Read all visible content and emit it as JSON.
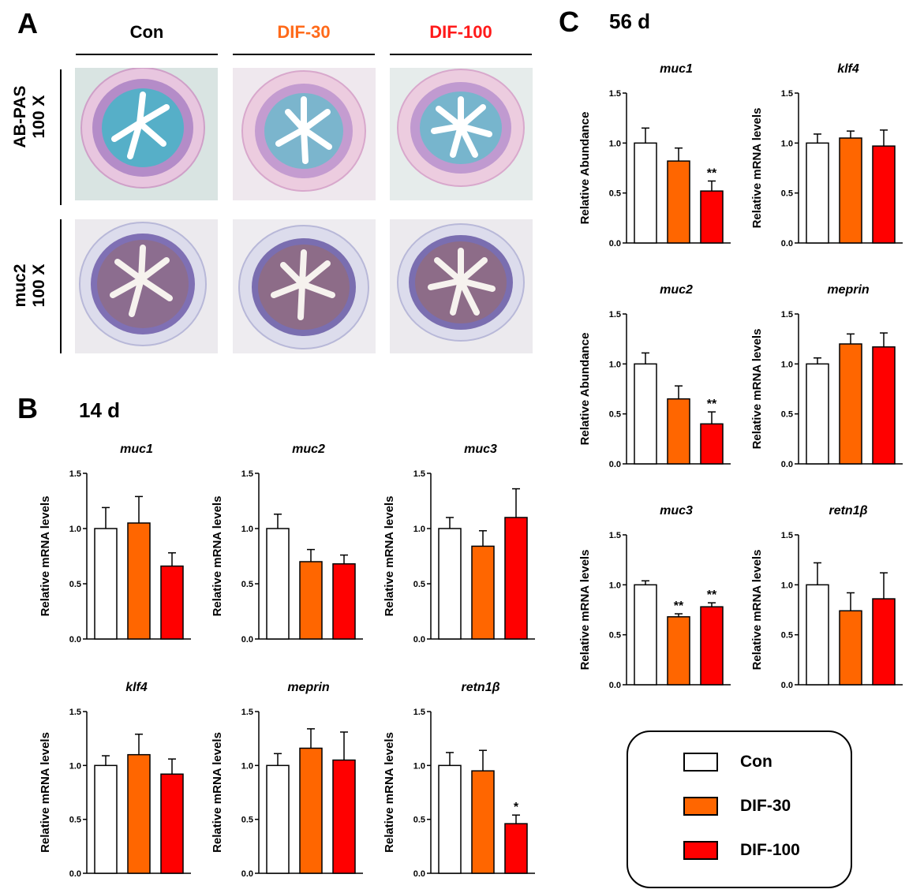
{
  "panels": {
    "A": "A",
    "B": "B",
    "C": "C",
    "B_day": "14 d",
    "C_day": "56 d"
  },
  "histology": {
    "columns": [
      {
        "label": "Con",
        "color": "#000000"
      },
      {
        "label": "DIF-30",
        "color": "#ff6a1a"
      },
      {
        "label": "DIF-100",
        "color": "#ff1a1a"
      }
    ],
    "rows": [
      {
        "line1": "AB-PAS",
        "line2": "100 X"
      },
      {
        "line1": "muc2",
        "line2": "100 X"
      }
    ],
    "image_descriptions": []
  },
  "colors": {
    "con": "#ffffff",
    "dif30": "#ff6600",
    "dif100": "#ff0000",
    "axis": "#000000"
  },
  "legend": {
    "items": [
      {
        "label": "Con",
        "color": "#ffffff"
      },
      {
        "label": "DIF-30",
        "color": "#ff6600"
      },
      {
        "label": "DIF-100",
        "color": "#ff0000"
      }
    ]
  },
  "chart_data": [
    {
      "id": "b-muc1",
      "panel": "B",
      "type": "bar",
      "title": "muc1",
      "ylabel": "Relative mRNA levels",
      "ylim": [
        0,
        1.5
      ],
      "yticks": [
        "0.0",
        "0.5",
        "1.0",
        "1.5"
      ],
      "categories": [
        "Con",
        "DIF-30",
        "DIF-100"
      ],
      "values": [
        1.0,
        1.05,
        0.66
      ],
      "errors": [
        0.19,
        0.24,
        0.12
      ],
      "sig": [
        "",
        "",
        ""
      ]
    },
    {
      "id": "b-muc2",
      "panel": "B",
      "type": "bar",
      "title": "muc2",
      "ylabel": "Relative mRNA levels",
      "ylim": [
        0,
        1.5
      ],
      "yticks": [
        "0.0",
        "0.5",
        "1.0",
        "1.5"
      ],
      "categories": [
        "Con",
        "DIF-30",
        "DIF-100"
      ],
      "values": [
        1.0,
        0.7,
        0.68
      ],
      "errors": [
        0.13,
        0.11,
        0.08
      ],
      "sig": [
        "",
        "",
        ""
      ]
    },
    {
      "id": "b-muc3",
      "panel": "B",
      "type": "bar",
      "title": "muc3",
      "ylabel": "Relative mRNA levels",
      "ylim": [
        0,
        1.5
      ],
      "yticks": [
        "0.0",
        "0.5",
        "1.0",
        "1.5"
      ],
      "categories": [
        "Con",
        "DIF-30",
        "DIF-100"
      ],
      "values": [
        1.0,
        0.84,
        1.1
      ],
      "errors": [
        0.1,
        0.14,
        0.26
      ],
      "sig": [
        "",
        "",
        ""
      ]
    },
    {
      "id": "b-klf4",
      "panel": "B",
      "type": "bar",
      "title": "klf4",
      "ylabel": "Relative mRNA levels",
      "ylim": [
        0,
        1.5
      ],
      "yticks": [
        "0.0",
        "0.5",
        "1.0",
        "1.5"
      ],
      "categories": [
        "Con",
        "DIF-30",
        "DIF-100"
      ],
      "values": [
        1.0,
        1.1,
        0.92
      ],
      "errors": [
        0.09,
        0.19,
        0.14
      ],
      "sig": [
        "",
        "",
        ""
      ]
    },
    {
      "id": "b-meprin",
      "panel": "B",
      "type": "bar",
      "title": "meprin",
      "ylabel": "Relative mRNA levels",
      "ylim": [
        0,
        1.5
      ],
      "yticks": [
        "0.0",
        "0.5",
        "1.0",
        "1.5"
      ],
      "categories": [
        "Con",
        "DIF-30",
        "DIF-100"
      ],
      "values": [
        1.0,
        1.16,
        1.05
      ],
      "errors": [
        0.11,
        0.18,
        0.26
      ],
      "sig": [
        "",
        "",
        ""
      ]
    },
    {
      "id": "b-retn1b",
      "panel": "B",
      "type": "bar",
      "title": "retn1β",
      "ylabel": "Relative mRNA levels",
      "ylim": [
        0,
        1.5
      ],
      "yticks": [
        "0.0",
        "0.5",
        "1.0",
        "1.5"
      ],
      "categories": [
        "Con",
        "DIF-30",
        "DIF-100"
      ],
      "values": [
        1.0,
        0.95,
        0.46
      ],
      "errors": [
        0.12,
        0.19,
        0.08
      ],
      "sig": [
        "",
        "",
        "*"
      ]
    },
    {
      "id": "c-muc1",
      "panel": "C",
      "type": "bar",
      "title": "muc1",
      "ylabel": "Relative Abundance",
      "ylim": [
        0,
        1.5
      ],
      "yticks": [
        "0.0",
        "0.5",
        "1.0",
        "1.5"
      ],
      "categories": [
        "Con",
        "DIF-30",
        "DIF-100"
      ],
      "values": [
        1.0,
        0.82,
        0.52
      ],
      "errors": [
        0.15,
        0.13,
        0.1
      ],
      "sig": [
        "",
        "",
        "**"
      ]
    },
    {
      "id": "c-klf4",
      "panel": "C",
      "type": "bar",
      "title": "klf4",
      "ylabel": "Relative mRNA levels",
      "ylim": [
        0,
        1.5
      ],
      "yticks": [
        "0.0",
        "0.5",
        "1.0",
        "1.5"
      ],
      "categories": [
        "Con",
        "DIF-30",
        "DIF-100"
      ],
      "values": [
        1.0,
        1.05,
        0.97
      ],
      "errors": [
        0.09,
        0.07,
        0.16
      ],
      "sig": [
        "",
        "",
        ""
      ]
    },
    {
      "id": "c-muc2",
      "panel": "C",
      "type": "bar",
      "title": "muc2",
      "ylabel": "Relative Abundance",
      "ylim": [
        0,
        1.5
      ],
      "yticks": [
        "0.0",
        "0.5",
        "1.0",
        "1.5"
      ],
      "categories": [
        "Con",
        "DIF-30",
        "DIF-100"
      ],
      "values": [
        1.0,
        0.65,
        0.4
      ],
      "errors": [
        0.11,
        0.13,
        0.12
      ],
      "sig": [
        "",
        "",
        "**"
      ]
    },
    {
      "id": "c-meprin",
      "panel": "C",
      "type": "bar",
      "title": "meprin",
      "ylabel": "Relative mRNA levels",
      "ylim": [
        0,
        1.5
      ],
      "yticks": [
        "0.0",
        "0.5",
        "1.0",
        "1.5"
      ],
      "categories": [
        "Con",
        "DIF-30",
        "DIF-100"
      ],
      "values": [
        1.0,
        1.2,
        1.17
      ],
      "errors": [
        0.06,
        0.1,
        0.14
      ],
      "sig": [
        "",
        "",
        ""
      ]
    },
    {
      "id": "c-muc3",
      "panel": "C",
      "type": "bar",
      "title": "muc3",
      "ylabel": "Relative mRNA levels",
      "ylim": [
        0,
        1.5
      ],
      "yticks": [
        "0.0",
        "0.5",
        "1.0",
        "1.5"
      ],
      "categories": [
        "Con",
        "DIF-30",
        "DIF-100"
      ],
      "values": [
        1.0,
        0.68,
        0.78
      ],
      "errors": [
        0.04,
        0.03,
        0.04
      ],
      "sig": [
        "",
        "**",
        "**"
      ]
    },
    {
      "id": "c-retn1b",
      "panel": "C",
      "type": "bar",
      "title": "retn1β",
      "ylabel": "Relative mRNA levels",
      "ylim": [
        0,
        1.5
      ],
      "yticks": [
        "0.0",
        "0.5",
        "1.0",
        "1.5"
      ],
      "categories": [
        "Con",
        "DIF-30",
        "DIF-100"
      ],
      "values": [
        1.0,
        0.74,
        0.86
      ],
      "errors": [
        0.22,
        0.18,
        0.26
      ],
      "sig": [
        "",
        "",
        ""
      ]
    }
  ]
}
